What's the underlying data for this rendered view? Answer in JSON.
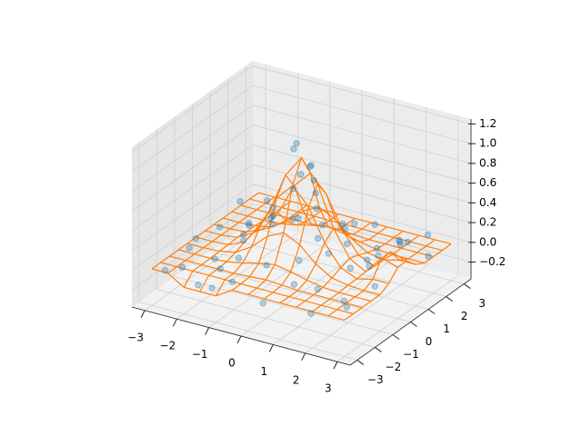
{
  "chart_data": {
    "type": "scatter3d",
    "xlim": [
      -3.4,
      3.4
    ],
    "ylim": [
      -3.4,
      3.4
    ],
    "zlim": [
      -0.37,
      1.25
    ],
    "xticks": [
      {
        "value": -3,
        "label": "−3"
      },
      {
        "value": -2,
        "label": "−2"
      },
      {
        "value": -1,
        "label": "−1"
      },
      0,
      1,
      2,
      3
    ],
    "yticks": [
      {
        "value": -3,
        "label": "−3"
      },
      {
        "value": -2,
        "label": "−2"
      },
      {
        "value": -1,
        "label": "−1"
      },
      0,
      1,
      2,
      3
    ],
    "zticks": [
      {
        "value": -0.2,
        "label": "−0.2"
      },
      {
        "value": 0,
        "label": "0.0"
      },
      0.2,
      0.4,
      0.6,
      0.8,
      {
        "value": 1,
        "label": "1.0"
      },
      1.2
    ],
    "grid": true,
    "series": [
      {
        "type": "wireframe",
        "color": "#ff7f0e",
        "x": [
          -3,
          -2.5,
          -2,
          -1.5,
          -1,
          -0.5,
          0,
          0.5,
          1,
          1.5,
          2,
          2.5,
          3
        ],
        "y": [
          -3,
          -2.5,
          -2,
          -1.5,
          -1,
          -0.5,
          0,
          0.5,
          1,
          1.5,
          2,
          2.5,
          3
        ],
        "z": [
          [
            0,
            0,
            -0.1,
            -0.1,
            -0.1,
            0,
            0,
            0,
            0,
            0,
            0,
            0,
            0
          ],
          [
            0,
            0,
            0,
            0,
            0,
            0,
            0,
            0,
            0,
            0,
            0,
            0,
            0
          ],
          [
            0,
            0,
            0,
            0,
            0,
            0.01,
            0.02,
            0.01,
            0,
            0,
            0,
            0,
            0
          ],
          [
            0,
            0,
            0,
            0.01,
            0.04,
            0.08,
            0.11,
            0.08,
            0.04,
            0.01,
            0,
            0,
            0
          ],
          [
            0,
            0,
            0.01,
            0.04,
            0.14,
            0.29,
            0.37,
            0.29,
            0.14,
            0.04,
            0.01,
            0,
            0
          ],
          [
            0,
            0,
            0.01,
            0.08,
            0.29,
            0.61,
            0.78,
            0.61,
            0.29,
            0.08,
            0.01,
            0.05,
            0.05
          ],
          [
            0,
            0,
            0.02,
            0.11,
            0.37,
            0.78,
            1,
            0.78,
            0.37,
            0.11,
            0.02,
            0.2,
            0.15
          ],
          [
            0,
            0,
            0.01,
            0.08,
            0.29,
            0.61,
            0.78,
            0.61,
            0.29,
            0.08,
            0.01,
            0.2,
            0.15
          ],
          [
            0,
            0,
            0.01,
            0.04,
            0.14,
            0.29,
            0.37,
            0.29,
            0.14,
            0.04,
            0.01,
            0.05,
            0.05
          ],
          [
            0,
            0,
            0,
            0.01,
            0.04,
            0.08,
            0.11,
            0.08,
            0.04,
            0.01,
            0,
            0,
            0
          ],
          [
            0,
            0,
            0,
            0,
            0,
            0.01,
            0.02,
            0.01,
            0,
            0,
            0,
            0,
            0
          ],
          [
            0,
            0,
            0,
            0,
            0,
            0,
            0,
            0,
            0,
            0,
            0,
            0,
            0
          ],
          [
            0,
            0,
            0,
            0,
            0,
            0,
            0,
            0,
            0,
            0,
            0,
            0,
            0
          ]
        ]
      },
      {
        "type": "scatter",
        "color": "#1f77b4",
        "alpha": 0.3,
        "x": [
          -2.8,
          -2.1,
          -1.4,
          -0.6,
          0.3,
          1.1,
          1.9,
          2.6,
          -2.5,
          -1.7,
          -0.9,
          -0.2,
          0.7,
          1.5,
          2.3,
          2.9,
          -2.9,
          -2.2,
          -1.3,
          -0.5,
          0.2,
          0.9,
          1.8,
          2.5,
          -2.6,
          -1.8,
          -1.0,
          -0.3,
          0.1,
          0.5,
          1.2,
          2.0,
          2.8,
          -2.3,
          -1.5,
          -0.7,
          0.0,
          0.8,
          1.6,
          2.4,
          -2.8,
          -1.9,
          -1.1,
          -0.4,
          0.4,
          1.3,
          2.1,
          2.9,
          -2.4,
          -1.6,
          -0.8,
          0.1,
          0.9,
          1.7,
          2.5,
          -0.1,
          0.3,
          -2.0,
          1.4,
          -1.2
        ],
        "y": [
          -2.6,
          -2.9,
          -2.5,
          -2.8,
          -2.7,
          -2.4,
          -2.9,
          -2.3,
          -1.8,
          -1.5,
          -1.9,
          -1.6,
          -1.4,
          -1.8,
          -1.6,
          -1.1,
          -0.7,
          -0.9,
          -0.6,
          -0.8,
          -0.4,
          -0.7,
          -0.5,
          -0.2,
          0.1,
          0.3,
          0.2,
          0.1,
          0.3,
          -0.1,
          0.4,
          0.2,
          0.5,
          0.9,
          1.1,
          0.8,
          0.7,
          1.0,
          0.8,
          1.2,
          1.6,
          1.8,
          1.5,
          1.9,
          1.6,
          1.9,
          1.7,
          1.9,
          2.4,
          2.7,
          2.3,
          2.8,
          2.5,
          2.9,
          2.6,
          -0.1,
          0.0,
          -2.2,
          -1.0,
          -1.1
        ],
        "z": [
          -0.05,
          0.08,
          -0.12,
          0.05,
          -0.1,
          0.12,
          -0.04,
          0.07,
          0.1,
          -0.08,
          0.15,
          0.1,
          0.2,
          0.03,
          -0.11,
          0.09,
          0.02,
          -0.1,
          0.3,
          0.45,
          0.9,
          0.35,
          0.1,
          0.25,
          0.06,
          0.12,
          0.38,
          1.05,
          0.88,
          0.7,
          0.18,
          0.05,
          0.3,
          -0.09,
          0.14,
          0.52,
          0.68,
          0.22,
          0.0,
          0.2,
          0.11,
          -0.07,
          0.09,
          0.04,
          0.16,
          -0.05,
          0.13,
          0.01,
          0.05,
          -0.1,
          0.12,
          -0.02,
          0.08,
          -0.08,
          0.1,
          1.15,
          0.95,
          -0.18,
          0.28,
          0.2
        ]
      }
    ]
  }
}
